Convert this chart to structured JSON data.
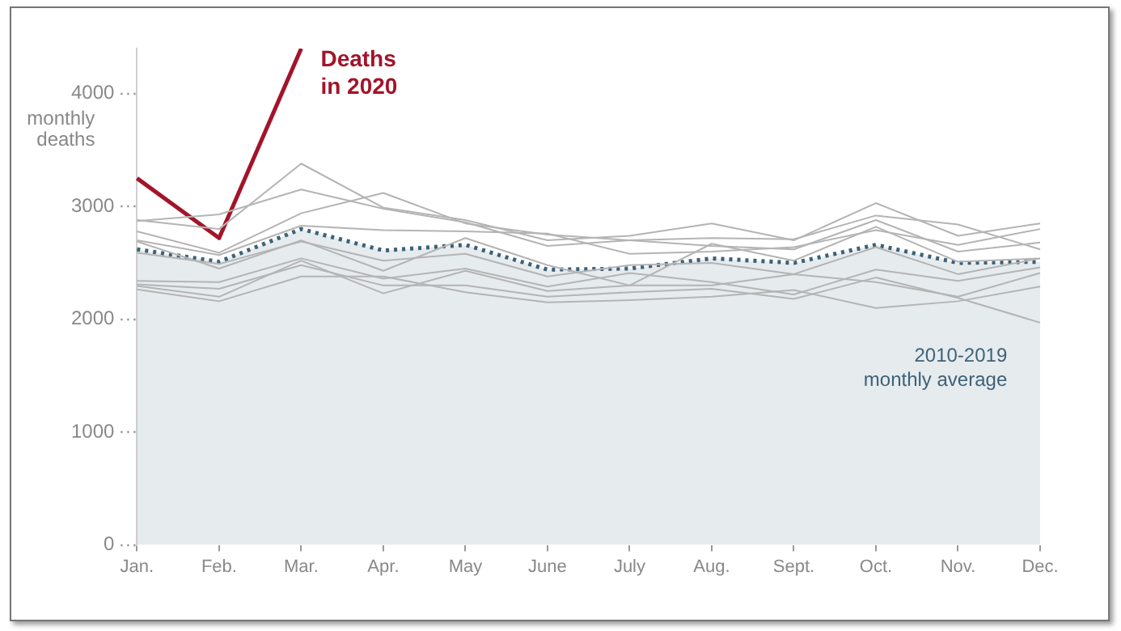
{
  "chart_data": {
    "type": "line",
    "ylabel": "monthly deaths",
    "categories": [
      "Jan.",
      "Feb.",
      "Mar.",
      "Apr.",
      "May",
      "June",
      "July",
      "Aug.",
      "Sept.",
      "Oct.",
      "Nov.",
      "Dec."
    ],
    "ylim": [
      0,
      4400
    ],
    "yticks": [
      0,
      1000,
      2000,
      3000,
      4000
    ],
    "grid": false,
    "legend": false,
    "marker": "none",
    "series": [
      {
        "name": "2010-2019 monthly average",
        "type": "area",
        "line_style": "dotted",
        "color": "#3d6178",
        "values": [
          2620,
          2510,
          2800,
          2610,
          2660,
          2440,
          2450,
          2540,
          2500,
          2660,
          2500,
          2510
        ]
      },
      {
        "color": "#b4b4b4",
        "values": [
          2880,
          2800,
          3380,
          2990,
          2880,
          2700,
          2740,
          2850,
          2700,
          3030,
          2740,
          2850
        ]
      },
      {
        "color": "#b4b4b4",
        "values": [
          2870,
          2930,
          3150,
          2980,
          2860,
          2650,
          2700,
          2720,
          2710,
          2920,
          2840,
          2620
        ]
      },
      {
        "color": "#b4b4b4",
        "values": [
          2780,
          2590,
          2940,
          3120,
          2850,
          2750,
          2700,
          2650,
          2620,
          2880,
          2600,
          2680
        ]
      },
      {
        "color": "#b4b4b4",
        "values": [
          2700,
          2570,
          2830,
          2790,
          2780,
          2760,
          2580,
          2600,
          2640,
          2790,
          2660,
          2800
        ]
      },
      {
        "color": "#b4b4b4",
        "values": [
          2690,
          2450,
          2700,
          2430,
          2720,
          2480,
          2300,
          2670,
          2520,
          2820,
          2510,
          2540
        ]
      },
      {
        "color": "#b4b4b4",
        "values": [
          2590,
          2490,
          2690,
          2520,
          2580,
          2380,
          2480,
          2500,
          2400,
          2640,
          2400,
          2540
        ]
      },
      {
        "color": "#b4b4b4",
        "values": [
          2340,
          2330,
          2540,
          2360,
          2450,
          2290,
          2410,
          2330,
          2220,
          2440,
          2340,
          2460
        ]
      },
      {
        "color": "#b4b4b4",
        "values": [
          2295,
          2200,
          2520,
          2230,
          2430,
          2250,
          2300,
          2300,
          2400,
          2330,
          2200,
          2410
        ]
      },
      {
        "color": "#b4b4b4",
        "values": [
          2265,
          2160,
          2380,
          2380,
          2240,
          2150,
          2170,
          2200,
          2260,
          2100,
          2160,
          2290
        ]
      },
      {
        "color": "#b4b4b4",
        "values": [
          2310,
          2270,
          2480,
          2300,
          2300,
          2200,
          2240,
          2270,
          2180,
          2370,
          2190,
          1970
        ]
      },
      {
        "name": "Deaths in 2020",
        "color": "#a3142a",
        "values": [
          3250,
          2720,
          4400,
          null,
          null,
          null,
          null,
          null,
          null,
          null,
          null,
          null
        ]
      }
    ]
  }
}
